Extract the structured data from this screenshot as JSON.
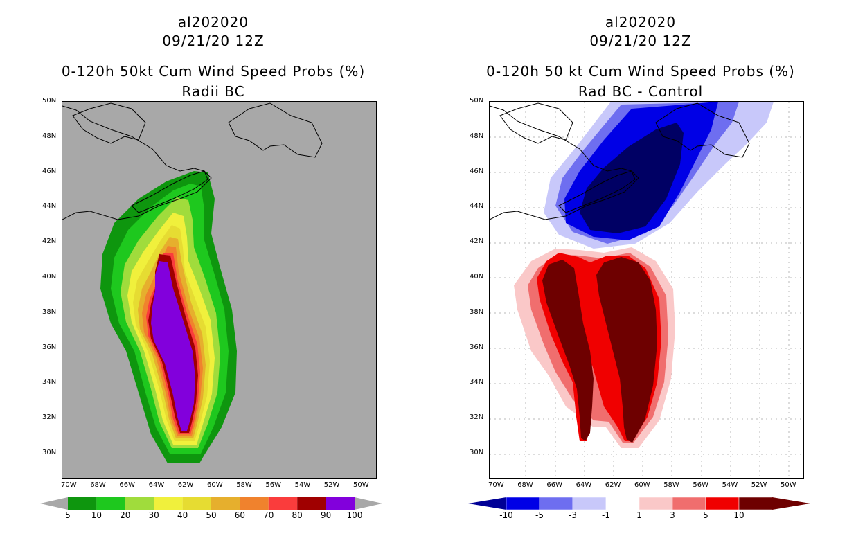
{
  "left_panel": {
    "storm_id": "al202020",
    "datetime": "09/21/20 12Z",
    "title": "0-120h 50kt Cum Wind Speed Probs (%)",
    "subtitle": "Radii BC",
    "colorbar": {
      "labels": [
        "5",
        "10",
        "20",
        "30",
        "40",
        "50",
        "60",
        "70",
        "80",
        "90",
        "100"
      ],
      "colors": [
        "#0e960e",
        "#1ec81e",
        "#a0dc3c",
        "#f0f03c",
        "#e6dc32",
        "#e6af2d",
        "#f0822d",
        "#fa3c3c",
        "#a00000",
        "#8200dc"
      ]
    }
  },
  "right_panel": {
    "storm_id": "al202020",
    "datetime": "09/21/20 12Z",
    "title": "0-120h 50 kt Cum Wind Speed Probs (%)",
    "subtitle": "Rad BC - Control",
    "colorbar": {
      "labels": [
        "-10",
        "-5",
        "-3",
        "-1",
        "1",
        "3",
        "5",
        "10"
      ],
      "colors": [
        "#0000e6",
        "#6e6ef0",
        "#c8c8fa",
        "#ffffff",
        "#fac8c8",
        "#f06e6e",
        "#f00000",
        "#6e0000"
      ],
      "end_low": "#000096",
      "end_high": "#6e0000"
    }
  },
  "axes": {
    "lat_labels": [
      "50N",
      "48N",
      "46N",
      "44N",
      "42N",
      "40N",
      "38N",
      "36N",
      "34N",
      "32N",
      "30N"
    ],
    "lon_labels": [
      "70W",
      "68W",
      "66W",
      "64W",
      "62W",
      "60W",
      "58W",
      "56W",
      "54W",
      "52W",
      "50W"
    ]
  },
  "colors": {
    "land_bg": "#a8a8a8",
    "blue_darkest": "#000064",
    "red_darkest": "#6e0000"
  }
}
